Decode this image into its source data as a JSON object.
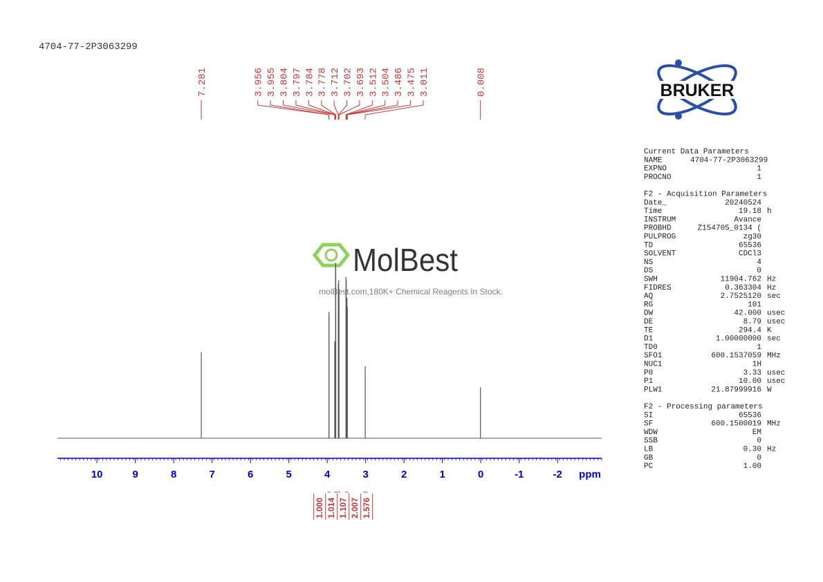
{
  "chart_data": {
    "type": "nmr",
    "title": "4704-77-2P3063299",
    "x_label": "ppm",
    "xlim": [
      11.03,
      -3.15
    ],
    "xticks": [
      10,
      9,
      8,
      7,
      6,
      5,
      4,
      3,
      2,
      1,
      0,
      -1,
      -2
    ],
    "color": "#555555",
    "axis_color": "#0000cc",
    "label_color": "#cc3333",
    "peaks": [
      7.281,
      3.956,
      3.955,
      3.804,
      3.797,
      3.784,
      3.778,
      3.712,
      3.702,
      3.693,
      3.512,
      3.504,
      3.486,
      3.475,
      3.011,
      0.008
    ],
    "intensities": [
      49,
      72,
      70,
      55,
      55,
      100,
      98,
      88,
      90,
      85,
      92,
      90,
      80,
      75,
      41,
      29
    ],
    "integrals": [
      {
        "range": [
          3.99,
          3.92
        ],
        "value": 1.0,
        "label": "1.000"
      },
      {
        "range": [
          3.82,
          3.74
        ],
        "value": 1.014,
        "label": "1.014"
      },
      {
        "range": [
          3.73,
          3.66
        ],
        "value": 1.107,
        "label": "1.107"
      },
      {
        "range": [
          3.53,
          3.45
        ],
        "value": 2.007,
        "label": "2.007"
      },
      {
        "range": [
          3.06,
          2.95
        ],
        "value": 1.576,
        "label": "1.576"
      }
    ]
  },
  "watermark": {
    "brand": "MolBest",
    "tagline": "molBest.com,180K+ Chemical Reagents In Stock."
  },
  "logo": {
    "text": "BRUKER"
  },
  "parameters": [
    {
      "title": "Current Data Parameters",
      "rows": [
        [
          "NAME",
          "4704-77-2P3063299",
          ""
        ],
        [
          "EXPNO",
          "1",
          ""
        ],
        [
          "PROCNO",
          "1",
          ""
        ]
      ]
    },
    {
      "title": "F2 - Acquisition Parameters",
      "rows": [
        [
          "Date_",
          "20240524",
          ""
        ],
        [
          "Time",
          "19.18",
          "h"
        ],
        [
          "INSTRUM",
          "Avance",
          ""
        ],
        [
          "PROBHD",
          "Z154705_0134 (",
          ""
        ],
        [
          "PULPROG",
          "zg30",
          ""
        ],
        [
          "TD",
          "65536",
          ""
        ],
        [
          "SOLVENT",
          "CDCl3",
          ""
        ],
        [
          "NS",
          "4",
          ""
        ],
        [
          "DS",
          "0",
          ""
        ],
        [
          "SWH",
          "11904.762",
          "Hz"
        ],
        [
          "FIDRES",
          "0.363304",
          "Hz"
        ],
        [
          "AQ",
          "2.7525120",
          "sec"
        ],
        [
          "RG",
          "101",
          ""
        ],
        [
          "DW",
          "42.000",
          "usec"
        ],
        [
          "DE",
          "8.79",
          "usec"
        ],
        [
          "TE",
          "294.4",
          "K"
        ],
        [
          "D1",
          "1.00000000",
          "sec"
        ],
        [
          "TD0",
          "1",
          ""
        ],
        [
          "SFO1",
          "600.1537059",
          "MHz"
        ],
        [
          "NUC1",
          "1H",
          ""
        ],
        [
          "P0",
          "3.33",
          "usec"
        ],
        [
          "P1",
          "10.00",
          "usec"
        ],
        [
          "PLW1",
          "21.87999916",
          "W"
        ]
      ]
    },
    {
      "title": "F2 - Processing parameters",
      "rows": [
        [
          "SI",
          "65536",
          ""
        ],
        [
          "SF",
          "600.1500019",
          "MHz"
        ],
        [
          "WDW",
          "EM",
          ""
        ],
        [
          "SSB",
          "0",
          ""
        ],
        [
          "LB",
          "0.30",
          "Hz"
        ],
        [
          "GB",
          "0",
          ""
        ],
        [
          "PC",
          "1.00",
          ""
        ]
      ]
    }
  ]
}
